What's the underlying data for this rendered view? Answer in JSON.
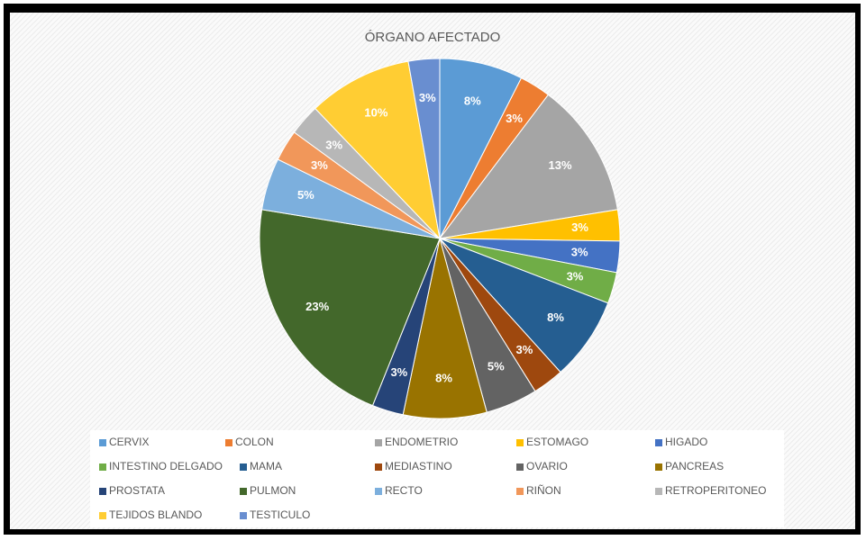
{
  "chart_data": {
    "type": "pie",
    "title": "ÓRGANO AFECTADO",
    "categories": [
      "CERVIX",
      "COLON",
      "ENDOMETRIO",
      "ESTOMAGO",
      "HIGADO",
      "INTESTINO DELGADO",
      "MAMA",
      "MEDIASTINO",
      "OVARIO",
      "PANCREAS",
      "PROSTATA",
      "PULMON",
      "RECTO",
      "RIÑON",
      "RETROPERITONEO",
      "TEJIDOS BLANDO",
      "TESTICULO"
    ],
    "values": [
      8,
      3,
      13,
      3,
      3,
      3,
      8,
      3,
      5,
      8,
      3,
      23,
      5,
      3,
      3,
      10,
      3
    ],
    "value_labels": [
      "8%",
      "3%",
      "13%",
      "3%",
      "3%",
      "3%",
      "8%",
      "3%",
      "5%",
      "8%",
      "3%",
      "23%",
      "5%",
      "3%",
      "3%",
      "10%",
      "3%"
    ],
    "colors": [
      "#5b9bd5",
      "#ed7d31",
      "#a5a5a5",
      "#ffc000",
      "#4472c4",
      "#70ad47",
      "#255e91",
      "#9e480e",
      "#636363",
      "#997300",
      "#264478",
      "#43682b",
      "#7cafdd",
      "#f1975a",
      "#b7b7b7",
      "#ffcd33",
      "#698ed0"
    ],
    "legend": "bottom"
  }
}
